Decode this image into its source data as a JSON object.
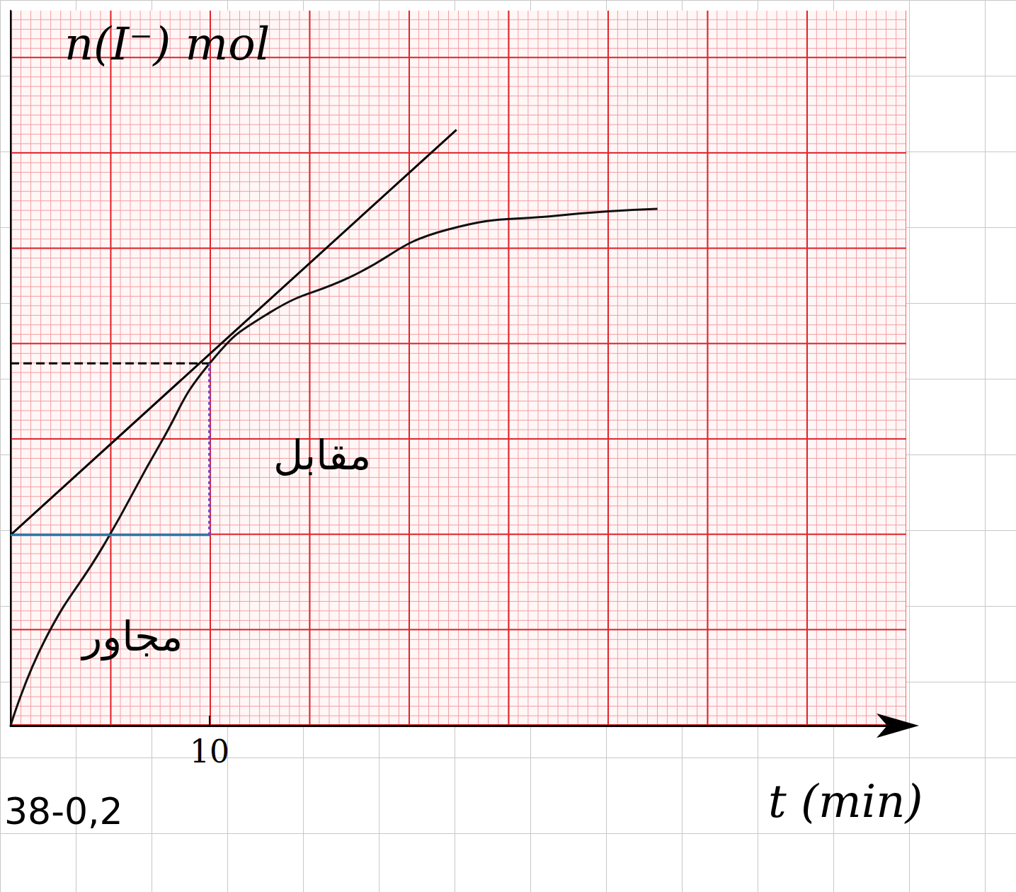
{
  "chart_data": {
    "type": "line",
    "x_label": "t (min)",
    "y_label": "n(I⁻) mol",
    "xlim": [
      0,
      45
    ],
    "ylim": [
      0,
      0.075
    ],
    "xticks": [
      10
    ],
    "tick_labels": "x",
    "grid": true,
    "annotations": [
      "مقابل",
      "مجاور",
      "38-0,2"
    ],
    "series": [
      {
        "type": "line",
        "color": "#111111",
        "line_style": "solid",
        "marker": "none",
        "x": [
          0,
          1.75,
          4.7,
          7.5,
          10,
          13,
          17,
          21.9,
          27.5,
          32.5
        ],
        "values": [
          0,
          0.0091,
          0.019,
          0.0295,
          0.038,
          0.0433,
          0.047,
          0.052,
          0.0535,
          0.0542
        ]
      },
      {
        "type": "line",
        "color": "#000000",
        "line_style": "solid",
        "marker": "none",
        "x": [
          0,
          22.4
        ],
        "values": [
          0.02,
          0.0625
        ]
      },
      {
        "type": "line",
        "color": "#000000",
        "line_style": "dashed",
        "marker": "none",
        "x": [
          0,
          10
        ],
        "values": [
          0.038,
          0.038
        ]
      },
      {
        "type": "line",
        "color": "#1a7fb5",
        "line_style": "solid",
        "marker": "none",
        "x": [
          0,
          10
        ],
        "values": [
          0.02,
          0.02
        ]
      },
      {
        "type": "line",
        "color": "#7b3fbf",
        "line_style": "dotted",
        "marker": "none",
        "x": [
          10,
          10
        ],
        "values": [
          0.02,
          0.038
        ]
      }
    ]
  }
}
